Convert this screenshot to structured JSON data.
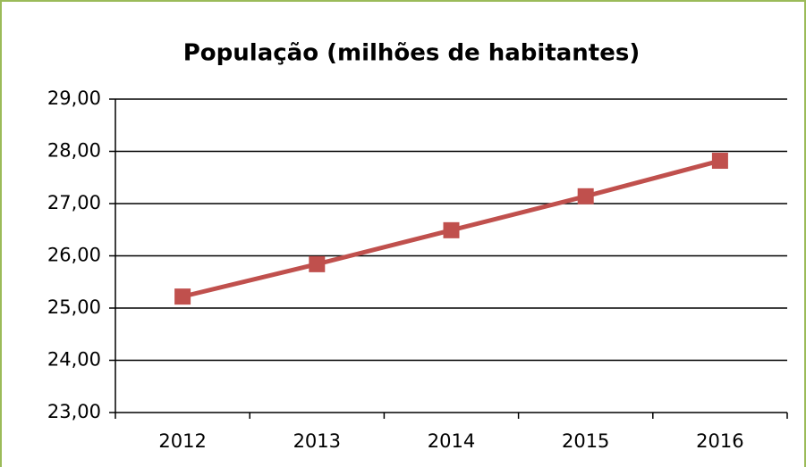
{
  "chart_data": {
    "type": "line",
    "title": "População (milhões de habitantes)",
    "categories": [
      "2012",
      "2013",
      "2014",
      "2015",
      "2016"
    ],
    "values": [
      25.22,
      25.84,
      26.49,
      27.14,
      27.82
    ],
    "color": "#c0504d",
    "ylim": [
      23,
      29
    ],
    "yticks": [
      {
        "value": 23,
        "label": "23,00"
      },
      {
        "value": 24,
        "label": "24,00"
      },
      {
        "value": 25,
        "label": "25,00"
      },
      {
        "value": 26,
        "label": "26,00"
      },
      {
        "value": 27,
        "label": "27,00"
      },
      {
        "value": 28,
        "label": "28,00"
      },
      {
        "value": 29,
        "label": "29,00"
      }
    ],
    "grid": true
  }
}
